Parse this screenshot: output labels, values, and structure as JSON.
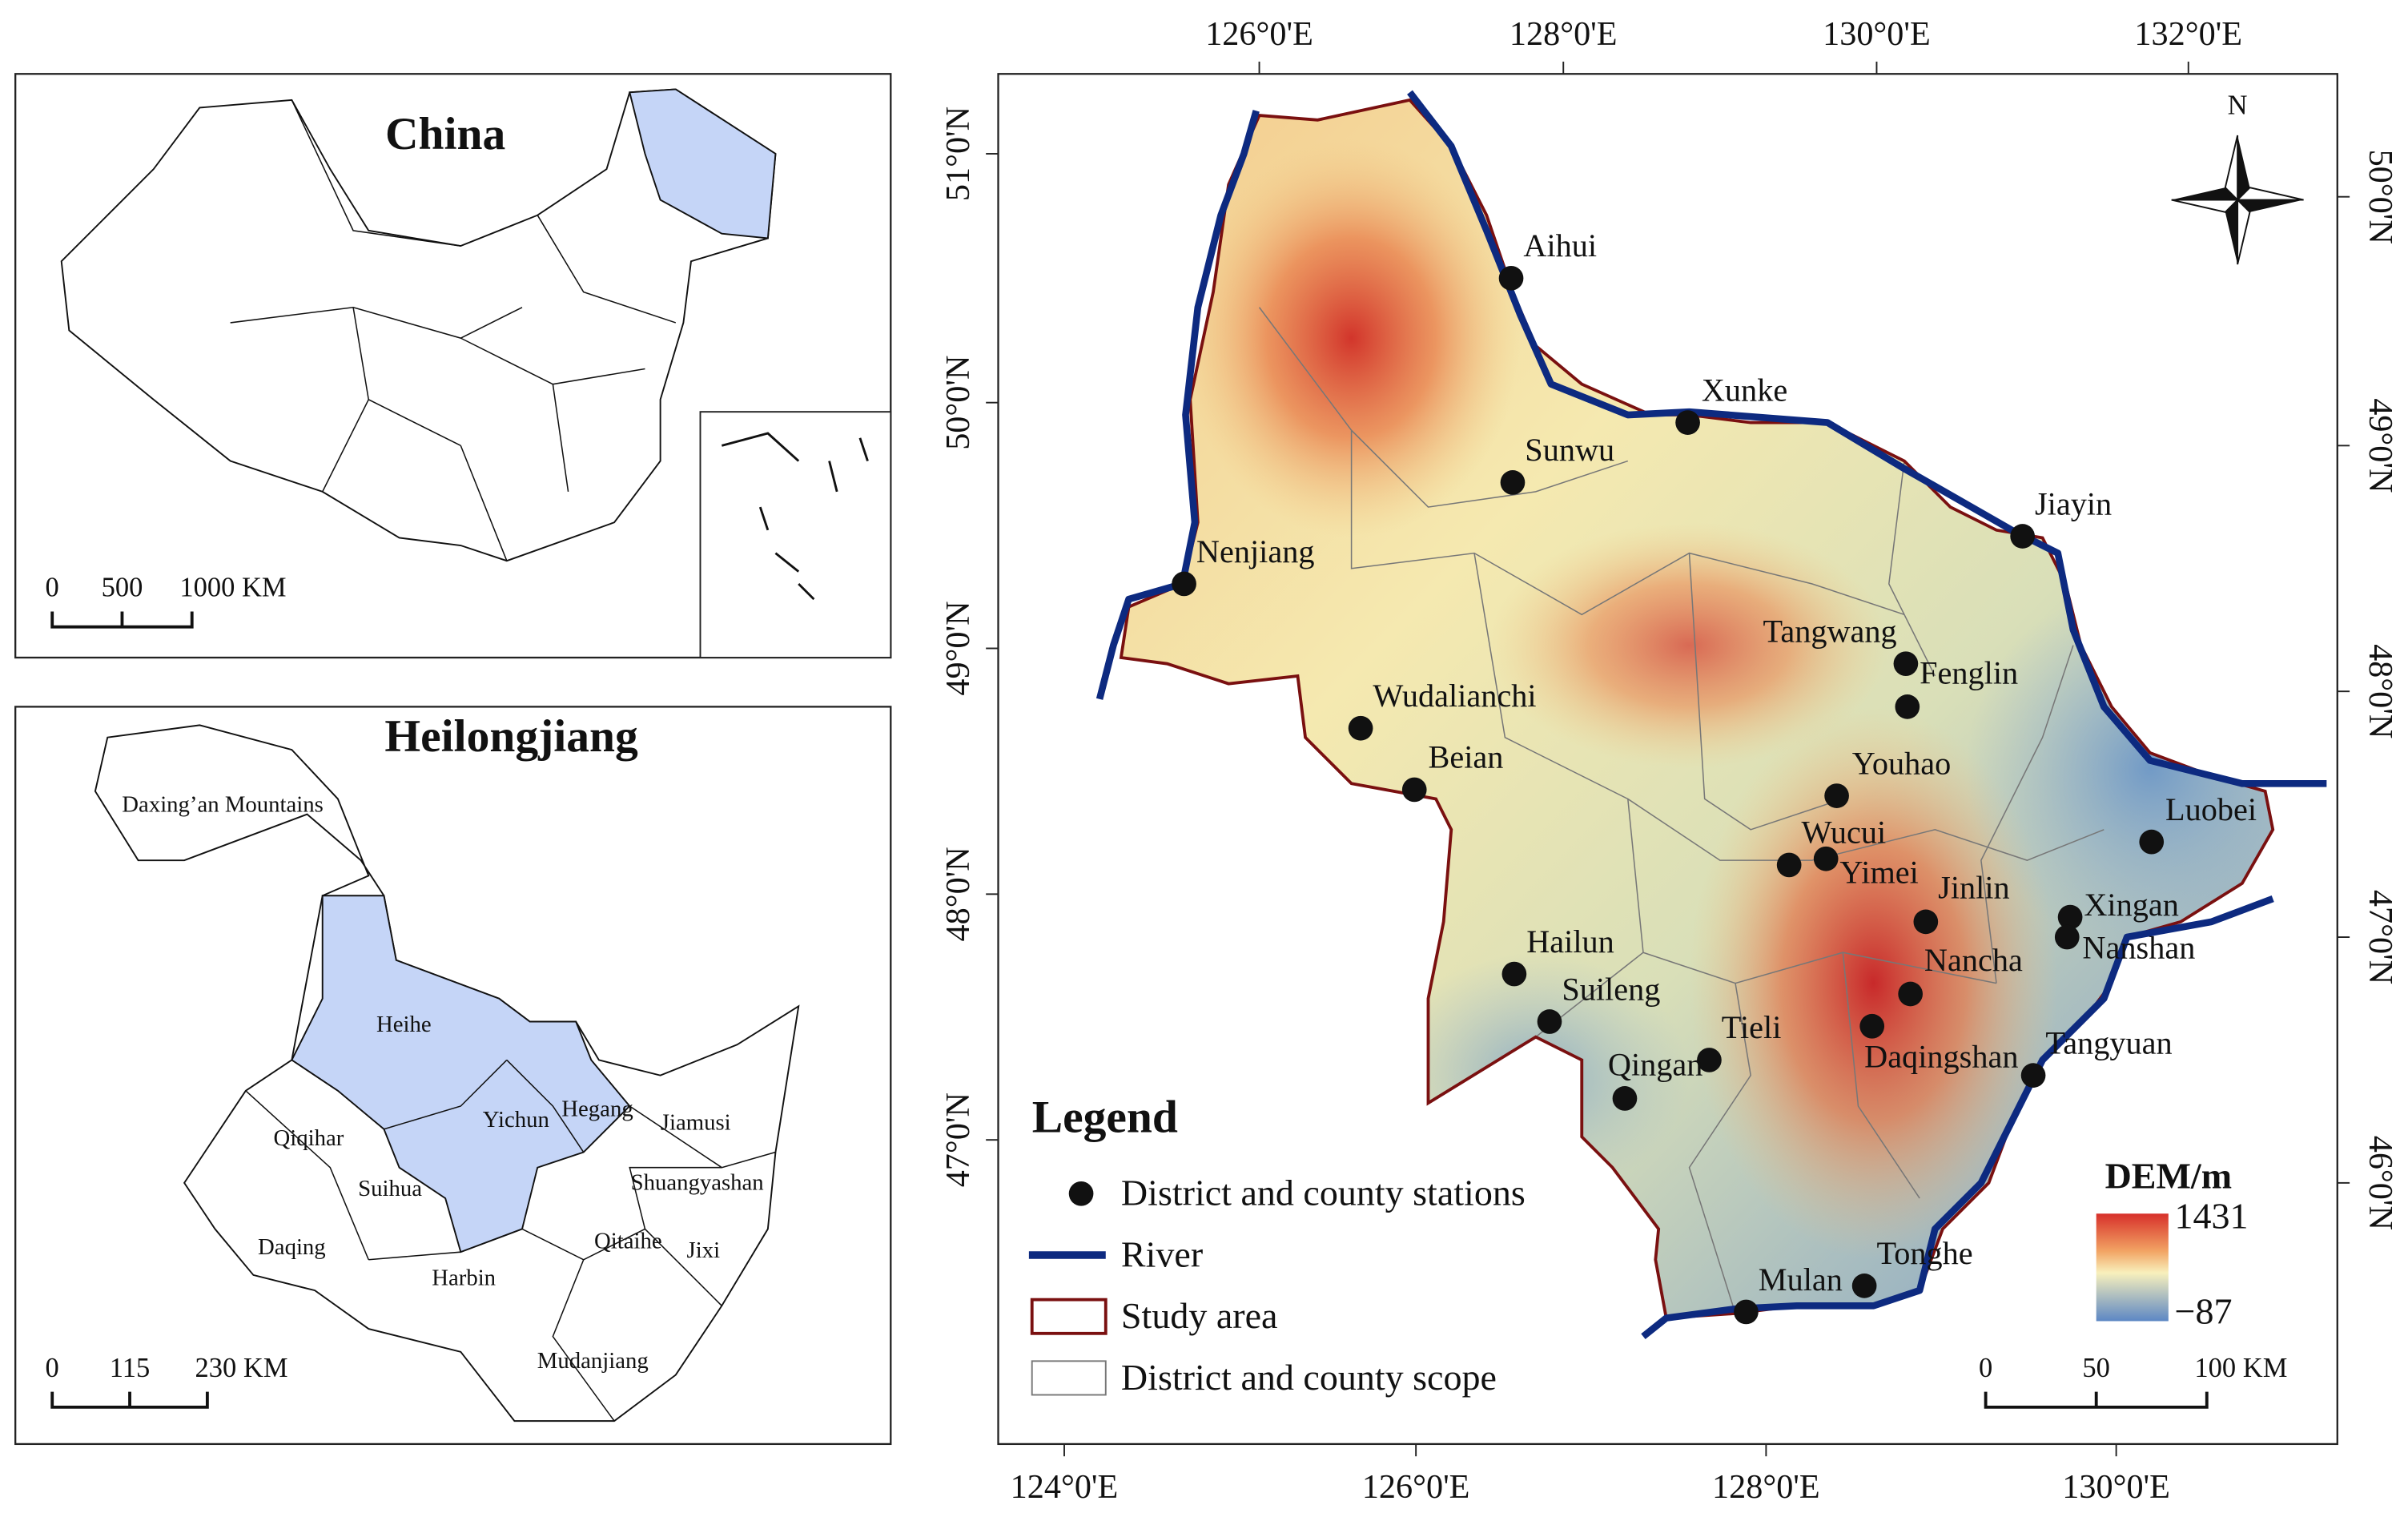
{
  "china_map": {
    "title": "China",
    "scale": [
      "0",
      "500",
      "1000 KM"
    ]
  },
  "heilongjiang_map": {
    "title": "Heilongjiang",
    "regions": [
      "Daxing’an Mountains",
      "Heihe",
      "Qiqihar",
      "Yichun",
      "Hegang",
      "Jiamusi",
      "Shuangyashan",
      "Suihua",
      "Daqing",
      "Harbin",
      "Qitaihe",
      "Jixi",
      "Mudanjiang"
    ],
    "scale": [
      "0",
      "115",
      "230 KM"
    ]
  },
  "main_map": {
    "top_labels": [
      "126°0'E",
      "128°0'E",
      "130°0'E",
      "132°0'E"
    ],
    "bottom_labels": [
      "124°0'E",
      "126°0'E",
      "128°0'E",
      "130°0'E"
    ],
    "left_labels": [
      "51°0'N",
      "50°0'N",
      "49°0'N",
      "48°0'N",
      "47°0'N"
    ],
    "right_labels": [
      "50°0'N",
      "49°0'N",
      "48°0'N",
      "47°0'N",
      "46°0'N"
    ],
    "north": "N",
    "stations": [
      "Aihui",
      "Xunke",
      "Sunwu",
      "Jiayin",
      "Nenjiang",
      "Tangwang",
      "Fenglin",
      "Wudalianchi",
      "Beian",
      "Youhao",
      "Luobei",
      "Wucui",
      "Yimei",
      "Jinlin",
      "Xingan",
      "Nanshan",
      "Hailun",
      "Nancha",
      "Suileng",
      "Tieli",
      "Qingan",
      "Daqingshan",
      "Tangyuan",
      "Tonghe",
      "Mulan"
    ],
    "legend": {
      "title": "Legend",
      "items": [
        "District and county stations",
        "River",
        "Study area",
        "District and county scope"
      ]
    },
    "dem": {
      "title": "DEM/m",
      "max": 1431,
      "min": {
        "value": -87,
        "label": "−87"
      }
    },
    "scale": [
      "0",
      "50",
      "100 KM"
    ]
  }
}
